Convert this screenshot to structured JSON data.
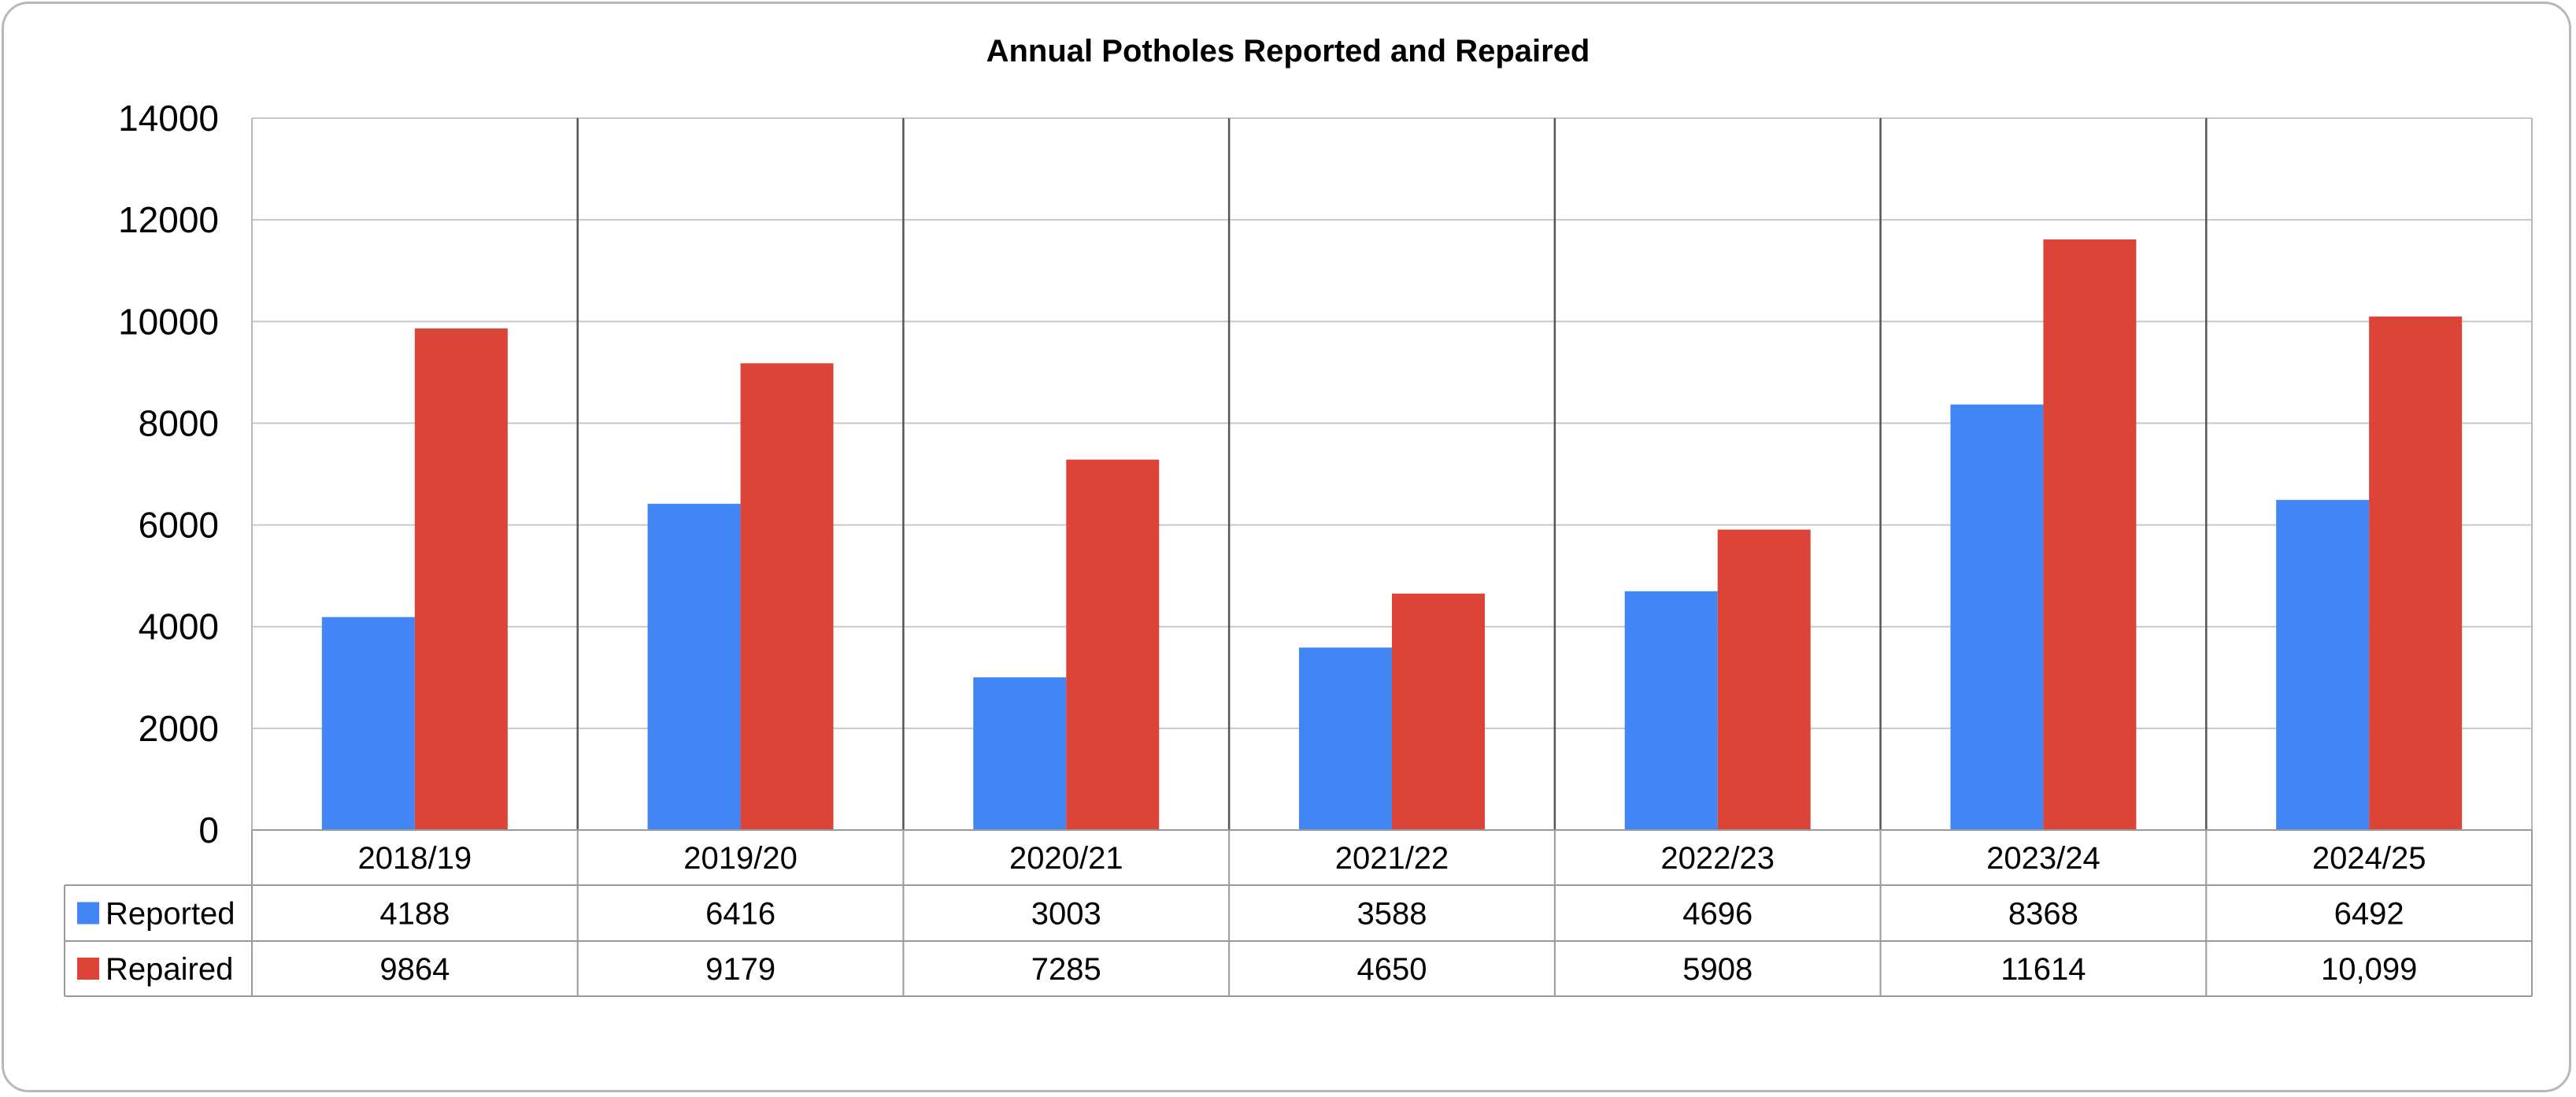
{
  "chart_data": {
    "type": "bar",
    "title": "Annual Potholes Reported and Repaired",
    "xlabel": "",
    "ylabel": "",
    "ylim": [
      0,
      14000
    ],
    "yticks": [
      "0",
      "2000",
      "4000",
      "6000",
      "8000",
      "10000",
      "12000",
      "14000"
    ],
    "categories": [
      "2018/19",
      "2019/20",
      "2020/21",
      "2021/22",
      "2022/23",
      "2023/24",
      "2024/25"
    ],
    "series": [
      {
        "name": "Reported",
        "color": "#4285F4",
        "values": [
          4188,
          6416,
          3003,
          3588,
          4696,
          8368,
          6492
        ],
        "labels": [
          "4188",
          "6416",
          "3003",
          "3588",
          "4696",
          "8368",
          "6492"
        ]
      },
      {
        "name": "Repaired",
        "color": "#DB4437",
        "values": [
          9864,
          9179,
          7285,
          4650,
          5908,
          11614,
          10099
        ],
        "labels": [
          "9864",
          "9179",
          "7285",
          "4650",
          "5908",
          "11614",
          "10,099"
        ]
      }
    ],
    "grid": true,
    "legend": "data-table"
  }
}
